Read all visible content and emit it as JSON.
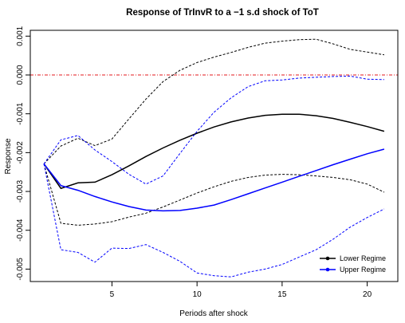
{
  "chart_data": {
    "type": "line",
    "title": "Response of TrInvR to a −1 s.d shock of ToT",
    "xlabel": "Periods after shock",
    "ylabel": "Response",
    "xlim": [
      0.2,
      21.8
    ],
    "ylim": [
      -0.00532,
      0.00115
    ],
    "x_ticks": [
      5,
      10,
      15,
      20
    ],
    "x_tick_labels": [
      "5",
      "10",
      "15",
      "20"
    ],
    "y_ticks": [
      -0.005,
      -0.004,
      -0.003,
      -0.002,
      -0.001,
      0.0,
      0.001
    ],
    "y_tick_labels": [
      "-0.005",
      "-0.004",
      "-0.003",
      "-0.002",
      "-0.001",
      "0.000",
      "0.001"
    ],
    "grid": false,
    "legend_position": "bottom-right",
    "reference_line": {
      "y": 0.0,
      "color": "#e31a1c",
      "style": "dash-dot"
    },
    "x": [
      1,
      2,
      3,
      4,
      5,
      6,
      7,
      8,
      9,
      10,
      11,
      12,
      13,
      14,
      15,
      16,
      17,
      18,
      19,
      20,
      21
    ],
    "series": [
      {
        "name": "Lower Regime",
        "color": "#000000",
        "values": [
          -0.00229,
          -0.00292,
          -0.00278,
          -0.00276,
          -0.00257,
          -0.00234,
          -0.0021,
          -0.00188,
          -0.00168,
          -0.0015,
          -0.00134,
          -0.00121,
          -0.00111,
          -0.00104,
          -0.00101,
          -0.00101,
          -0.00105,
          -0.00112,
          -0.00122,
          -0.00133,
          -0.00145
        ],
        "lower": [
          -0.00229,
          -0.00382,
          -0.00387,
          -0.00384,
          -0.00378,
          -0.00366,
          -0.00356,
          -0.0034,
          -0.00322,
          -0.00304,
          -0.00288,
          -0.00274,
          -0.00264,
          -0.00258,
          -0.00256,
          -0.00257,
          -0.0026,
          -0.00264,
          -0.0027,
          -0.00281,
          -0.00302
        ],
        "upper": [
          -0.00229,
          -0.00183,
          -0.00163,
          -0.00182,
          -0.00165,
          -0.00113,
          -0.00062,
          -0.00017,
          0.00012,
          0.00032,
          0.00046,
          0.00058,
          0.00071,
          0.00082,
          0.00087,
          0.00091,
          0.00092,
          0.0008,
          0.00066,
          0.00059,
          0.00052
        ]
      },
      {
        "name": "Upper Regime",
        "color": "#0000ff",
        "values": [
          -0.00229,
          -0.00285,
          -0.00297,
          -0.00313,
          -0.00327,
          -0.00339,
          -0.00348,
          -0.0035,
          -0.00349,
          -0.00343,
          -0.00335,
          -0.00321,
          -0.00306,
          -0.00291,
          -0.00276,
          -0.00261,
          -0.00246,
          -0.00231,
          -0.00217,
          -0.00203,
          -0.00191
        ],
        "lower": [
          -0.00229,
          -0.0045,
          -0.00457,
          -0.00482,
          -0.00446,
          -0.00447,
          -0.00437,
          -0.00457,
          -0.0048,
          -0.0051,
          -0.00517,
          -0.0052,
          -0.00508,
          -0.005,
          -0.00488,
          -0.00469,
          -0.0045,
          -0.00423,
          -0.00392,
          -0.00367,
          -0.00345
        ],
        "upper": [
          -0.00229,
          -0.00167,
          -0.00156,
          -0.00193,
          -0.00223,
          -0.00256,
          -0.00281,
          -0.0026,
          -0.00202,
          -0.00145,
          -0.00096,
          -0.00059,
          -0.0003,
          -0.00015,
          -0.00013,
          -8e-05,
          -6e-05,
          -4e-05,
          -3e-05,
          -0.00011,
          -0.00012
        ]
      }
    ]
  }
}
